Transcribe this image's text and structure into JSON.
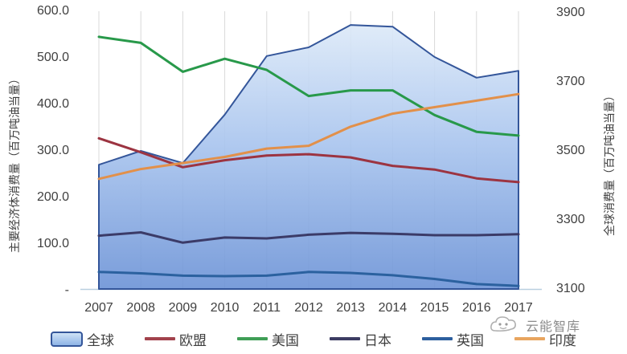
{
  "chart_data": {
    "type": "area",
    "title": "",
    "x_label": "",
    "categories": [
      "2007",
      "2008",
      "2009",
      "2010",
      "2011",
      "2012",
      "2013",
      "2014",
      "2015",
      "2016",
      "2017"
    ],
    "left_axis": {
      "title": "主要经济体消费量（百万吨油当量）",
      "lim": [
        0,
        600
      ],
      "tick_labels": [
        "600.0",
        "500.0",
        "400.0",
        "300.0",
        "200.0",
        "100.0",
        "-"
      ],
      "tick_values": [
        600,
        500,
        400,
        300,
        200,
        100,
        0
      ]
    },
    "right_axis": {
      "title": "全球消费量（百万吨油当量）",
      "lim": [
        3100,
        3900
      ],
      "tick_labels": [
        "3900",
        "3700",
        "3500",
        "3300",
        "3100"
      ],
      "tick_values": [
        3900,
        3700,
        3500,
        3300,
        3100
      ]
    },
    "grid": "vertical-only",
    "legend_position": "bottom",
    "series": [
      {
        "id": "global",
        "label": "全球",
        "type": "area",
        "axis": "right",
        "color": "#34569a",
        "fill_top": "#dce9f8",
        "fill_mid": "#a8c4ee",
        "fill_bottom": "#6b92d6",
        "values": [
          3460,
          3500,
          3465,
          3605,
          3775,
          3800,
          3865,
          3860,
          3772,
          3712,
          3732
        ]
      },
      {
        "id": "eu",
        "label": "欧盟",
        "type": "line",
        "axis": "left",
        "color": "#9c3441",
        "values": [
          327,
          297,
          265,
          280,
          290,
          293,
          286,
          268,
          260,
          241,
          233
        ]
      },
      {
        "id": "us",
        "label": "美国",
        "type": "line",
        "axis": "left",
        "color": "#28994a",
        "values": [
          545,
          532,
          470,
          498,
          474,
          418,
          430,
          430,
          377,
          341,
          333
        ]
      },
      {
        "id": "japan",
        "label": "日本",
        "type": "line",
        "axis": "left",
        "color": "#3b3b68",
        "values": [
          118,
          125,
          103,
          114,
          112,
          120,
          124,
          122,
          119,
          119,
          121
        ]
      },
      {
        "id": "uk",
        "label": "英国",
        "type": "line",
        "axis": "left",
        "color": "#2b619f",
        "values": [
          40,
          37,
          32,
          31,
          32,
          40,
          38,
          33,
          25,
          14,
          10
        ]
      },
      {
        "id": "india",
        "label": "印度",
        "type": "line",
        "axis": "left",
        "color": "#e2904a",
        "values": [
          240,
          261,
          274,
          287,
          305,
          311,
          352,
          380,
          394,
          408,
          422
        ]
      }
    ]
  },
  "legend": {
    "items": [
      {
        "label": "全球",
        "swatch": "area"
      },
      {
        "label": "欧盟",
        "swatch": "line",
        "color": "#a2424c"
      },
      {
        "label": "美国",
        "swatch": "line",
        "color": "#3f9e56"
      },
      {
        "label": "日本",
        "swatch": "line",
        "color": "#3c3c63"
      },
      {
        "label": "英国",
        "swatch": "line",
        "color": "#2d5f9e"
      },
      {
        "label": "印度",
        "swatch": "line",
        "color": "#e8a55f"
      }
    ]
  },
  "watermark": {
    "text": "云能智库",
    "icon": "cloud-logo-icon",
    "color": "#8c8c8c"
  },
  "style": {
    "gridline_color": "#d9d9d9",
    "axis_line_color": "#b9cfe0",
    "tick_text_color": "#404040"
  }
}
